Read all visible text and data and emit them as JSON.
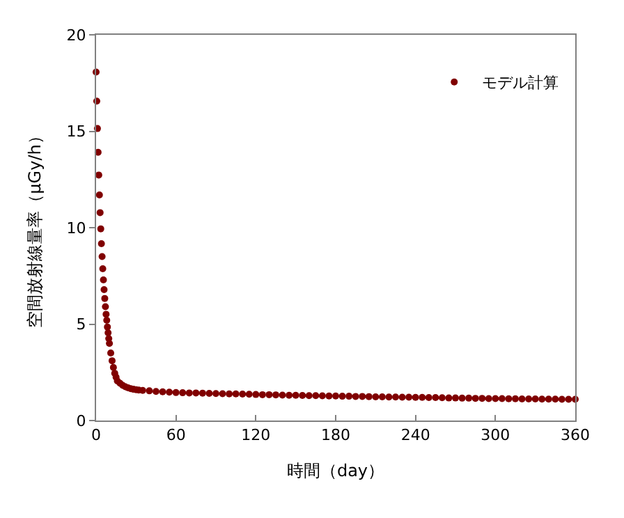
{
  "chart_data": {
    "type": "scatter",
    "xlabel": "時間（day）",
    "ylabel": "空間放射線量率（μGy/h）",
    "x": [
      0,
      0.5,
      1,
      1.5,
      2,
      2.5,
      3,
      3.5,
      4,
      4.5,
      5,
      5.5,
      6,
      6.5,
      7,
      7.5,
      8,
      8.5,
      9,
      9.5,
      10,
      11,
      12,
      13,
      14,
      15,
      16,
      18,
      20,
      22,
      24,
      26,
      28,
      30,
      32,
      35,
      40,
      45,
      50,
      55,
      60,
      65,
      70,
      75,
      80,
      85,
      90,
      95,
      100,
      105,
      110,
      115,
      120,
      125,
      130,
      135,
      140,
      145,
      150,
      155,
      160,
      165,
      170,
      175,
      180,
      185,
      190,
      195,
      200,
      205,
      210,
      215,
      220,
      225,
      230,
      235,
      240,
      245,
      250,
      255,
      260,
      265,
      270,
      275,
      280,
      285,
      290,
      295,
      300,
      305,
      310,
      315,
      320,
      325,
      330,
      335,
      340,
      345,
      350,
      355,
      360
    ],
    "series": [
      {
        "name": "モデル計算",
        "color": "#800000",
        "values": [
          18.07,
          16.56,
          15.14,
          13.91,
          12.73,
          11.7,
          10.78,
          9.94,
          9.17,
          8.5,
          7.87,
          7.29,
          6.79,
          6.33,
          5.9,
          5.51,
          5.2,
          4.85,
          4.55,
          4.25,
          4.0,
          3.5,
          3.1,
          2.75,
          2.45,
          2.25,
          2.05,
          1.93,
          1.82,
          1.75,
          1.7,
          1.65,
          1.62,
          1.6,
          1.58,
          1.56,
          1.54,
          1.51,
          1.49,
          1.47,
          1.45,
          1.44,
          1.43,
          1.43,
          1.42,
          1.41,
          1.4,
          1.39,
          1.38,
          1.38,
          1.37,
          1.36,
          1.35,
          1.34,
          1.34,
          1.33,
          1.32,
          1.31,
          1.31,
          1.3,
          1.29,
          1.29,
          1.28,
          1.27,
          1.27,
          1.26,
          1.26,
          1.25,
          1.25,
          1.24,
          1.23,
          1.23,
          1.22,
          1.22,
          1.21,
          1.21,
          1.2,
          1.2,
          1.19,
          1.19,
          1.18,
          1.17,
          1.17,
          1.16,
          1.16,
          1.15,
          1.15,
          1.14,
          1.14,
          1.14,
          1.13,
          1.13,
          1.12,
          1.12,
          1.12,
          1.11,
          1.11,
          1.11,
          1.1,
          1.1,
          1.1
        ]
      }
    ],
    "xlim": [
      0,
      360
    ],
    "xticks": [
      0,
      60,
      120,
      180,
      240,
      300,
      360
    ],
    "ylim": [
      0,
      20
    ],
    "yticks": [
      0,
      5,
      10,
      15,
      20
    ],
    "legend": "top right",
    "marker": "circle"
  }
}
